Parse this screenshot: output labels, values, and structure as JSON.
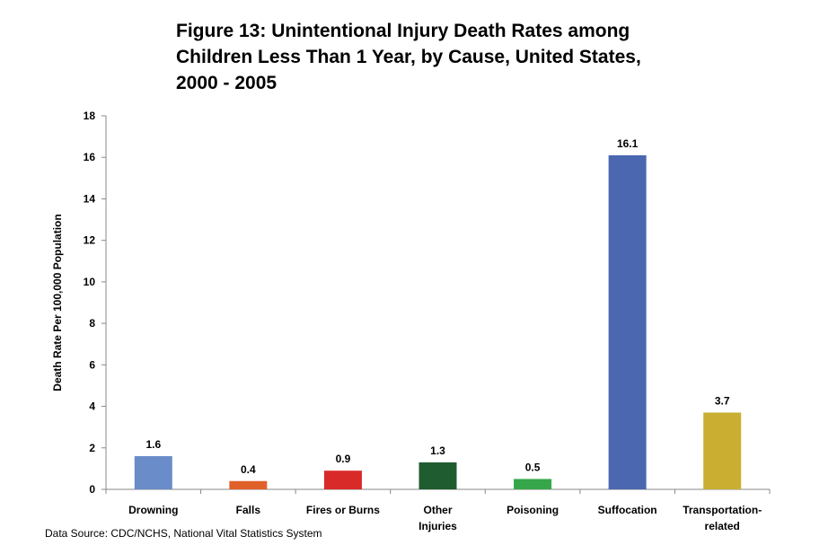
{
  "chart_data": {
    "type": "bar",
    "title_lines": [
      "Figure 13: Unintentional Injury Death Rates among",
      "Children Less Than 1 Year, by Cause, United States,",
      "2000 - 2005"
    ],
    "ylabel": "Death Rate Per 100,000 Population",
    "xlabel": "",
    "ylim": [
      0,
      18
    ],
    "yticks": [
      0,
      2,
      4,
      6,
      8,
      10,
      12,
      14,
      16,
      18
    ],
    "grid": false,
    "categories": [
      [
        "Drowning"
      ],
      [
        "Falls"
      ],
      [
        "Fires or Burns"
      ],
      [
        "Other",
        "Injuries"
      ],
      [
        "Poisoning"
      ],
      [
        "Suffocation"
      ],
      [
        "Transportation-",
        "related"
      ]
    ],
    "values": [
      1.6,
      0.4,
      0.9,
      1.3,
      0.5,
      16.1,
      3.7
    ],
    "data_labels": [
      "1.6",
      "0.4",
      "0.9",
      "1.3",
      "0.5",
      "16.1",
      "3.7"
    ],
    "colors": [
      "#6a8cc8",
      "#e0602a",
      "#d92a2a",
      "#1f5c30",
      "#35a64a",
      "#4a67b0",
      "#c9ae32"
    ]
  },
  "source": "Data Source: CDC/NCHS, National Vital Statistics System"
}
